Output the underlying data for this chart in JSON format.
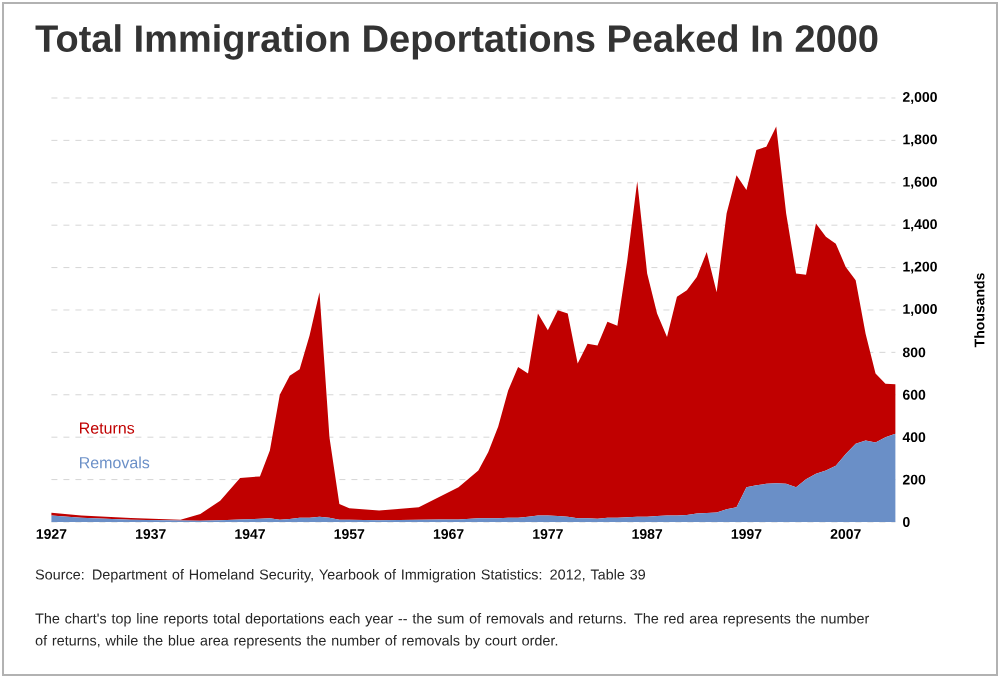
{
  "chart_data": {
    "type": "area",
    "stacked": true,
    "title": "Total Immigration Deportations Peaked In 2000",
    "ylabel": "Thousands",
    "x": [
      1927,
      1930,
      1935,
      1940,
      1942,
      1944,
      1946,
      1948,
      1949,
      1950,
      1951,
      1952,
      1953,
      1954,
      1955,
      1956,
      1957,
      1960,
      1964,
      1966,
      1968,
      1970,
      1971,
      1972,
      1973,
      1974,
      1975,
      1976,
      1977,
      1978,
      1979,
      1980,
      1981,
      1982,
      1983,
      1984,
      1985,
      1986,
      1987,
      1988,
      1989,
      1990,
      1991,
      1992,
      1993,
      1994,
      1995,
      1996,
      1997,
      1998,
      1999,
      2000,
      2001,
      2002,
      2003,
      2004,
      2005,
      2006,
      2007,
      2008,
      2009,
      2010,
      2011,
      2012
    ],
    "series": [
      {
        "name": "Removals",
        "color": "#6a8fc7",
        "values": [
          30,
          20,
          10,
          7,
          6,
          8,
          12,
          15,
          18,
          10,
          14,
          20,
          20,
          25,
          20,
          10,
          10,
          8,
          10,
          12,
          12,
          17,
          18,
          18,
          20,
          20,
          25,
          30,
          30,
          28,
          25,
          18,
          17,
          15,
          20,
          20,
          22,
          25,
          25,
          28,
          30,
          30,
          33,
          40,
          42,
          45,
          60,
          70,
          164,
          173,
          180,
          183,
          180,
          164,
          202,
          227,
          243,
          265,
          321,
          369,
          384,
          375,
          400,
          416
        ]
      },
      {
        "name": "Returns",
        "color": "#c00000",
        "values": [
          14,
          10,
          9,
          3,
          32,
          92,
          196,
          200,
          319,
          590,
          676,
          700,
          860,
          1059,
          380,
          75,
          55,
          46,
          59,
          105,
          152,
          226,
          312,
          432,
          600,
          711,
          675,
          953,
          874,
          971,
          958,
          729,
          824,
          817,
          925,
          906,
          1213,
          1582,
          1147,
          955,
          843,
          1032,
          1060,
          1116,
          1231,
          1039,
          1395,
          1565,
          1402,
          1582,
          1590,
          1682,
          1275,
          1008,
          964,
          1181,
          1102,
          1048,
          882,
          771,
          504,
          325,
          252,
          234
        ]
      }
    ],
    "xlim": [
      1927,
      2012
    ],
    "xticks": [
      1927,
      1937,
      1947,
      1957,
      1967,
      1977,
      1987,
      1997,
      2007
    ],
    "ylim": [
      0,
      2000
    ],
    "yticks": [
      0,
      200,
      400,
      600,
      800,
      {
        "value": 1000,
        "label": "1,000"
      },
      {
        "value": 1200,
        "label": "1,200"
      },
      {
        "value": 1400,
        "label": "1,400"
      },
      {
        "value": 1600,
        "label": "1,600"
      },
      {
        "value": 1800,
        "label": "1,800"
      },
      {
        "value": 2000,
        "label": "2,000"
      }
    ],
    "grid": "y",
    "legend": "left",
    "annotations": [
      "Source: Department of Homeland Security, Yearbook of Immigration  Statistics:  2012, Table 39",
      "The chart's top line reports total deportations each year -- the sum of removals and returns. The red area represents the number of returns, while the blue area represents the number of removals by court order."
    ]
  }
}
